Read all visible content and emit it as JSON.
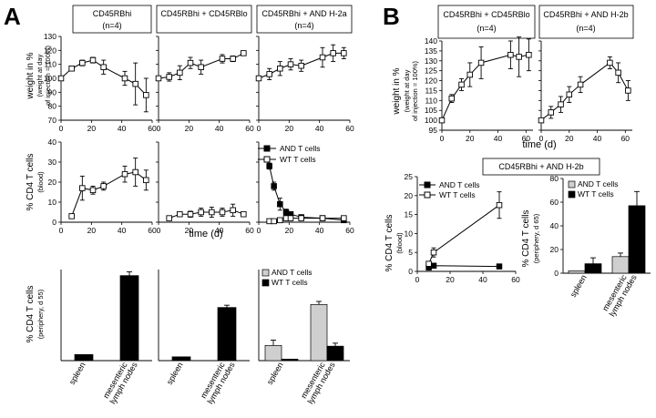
{
  "panel_labels": {
    "a": "A",
    "b": "B"
  },
  "box_titles": {
    "a1": "CD45RBhi",
    "a1_n": "(n=4)",
    "a2": "CD45RBhi + CD45RBlo",
    "a3": "CD45RBhi + AND H-2a",
    "a3_n": "(n=4)",
    "b1": "CD45RBhi + CD45RBlo",
    "b1_n": "(n=4)",
    "b2": "CD45RBhi + AND H-2b",
    "b2_n": "(n=4)",
    "b3": "CD45RBhi + AND H-2b"
  },
  "axis_labels": {
    "weight": "weight in %",
    "weight_sub1": "(weight at day",
    "weight_sub2": "of injection = 100%)",
    "cd4": "% CD4 T cells",
    "blood": "(blood)",
    "periph55": "(periphery, d 55)",
    "periph65": "(periphery, d 65)",
    "time": "time (d)"
  },
  "legend": {
    "and": "AND T cells",
    "wt": "WT T cells"
  },
  "categories": {
    "spleen": "spleen",
    "mes1": "mesenteric",
    "mes2": "lymph nodes"
  },
  "colors": {
    "black": "#000000",
    "white": "#ffffff",
    "grey": "#cfcfcf"
  },
  "chart_data": [
    {
      "id": "A_weight_1",
      "type": "line",
      "title": "CD45RBhi (n=4)",
      "ylabel": "weight in % (weight at day of injection = 100%)",
      "xlim": [
        0,
        60
      ],
      "ylim": [
        70,
        130
      ],
      "xticks": [
        0,
        20,
        40,
        60
      ],
      "yticks": [
        70,
        80,
        90,
        100,
        110,
        120,
        130
      ],
      "series": [
        {
          "name": "weight",
          "marker": "open",
          "x": [
            0,
            7,
            14,
            21,
            28,
            42,
            49,
            56
          ],
          "y": [
            100,
            107,
            111,
            113,
            108,
            100,
            96,
            88
          ],
          "err": [
            1,
            1,
            2,
            2,
            5,
            5,
            15,
            12
          ]
        }
      ]
    },
    {
      "id": "A_weight_2",
      "type": "line",
      "title": "CD45RBhi + CD45RBlo",
      "xlim": [
        0,
        60
      ],
      "ylim": [
        70,
        130
      ],
      "xticks": [
        0,
        20,
        40,
        60
      ],
      "series": [
        {
          "name": "weight",
          "marker": "open",
          "x": [
            0,
            7,
            14,
            21,
            28,
            42,
            49,
            56
          ],
          "y": [
            100,
            101,
            104,
            111,
            108,
            114,
            114,
            118
          ],
          "err": [
            1,
            3,
            5,
            4,
            5,
            3,
            2,
            1
          ]
        }
      ]
    },
    {
      "id": "A_weight_3",
      "type": "line",
      "title": "CD45RBhi + AND H-2a (n=4)",
      "xlim": [
        0,
        60
      ],
      "ylim": [
        70,
        130
      ],
      "xticks": [
        0,
        20,
        40,
        60
      ],
      "series": [
        {
          "name": "weight",
          "marker": "open",
          "x": [
            0,
            7,
            14,
            21,
            28,
            42,
            49,
            56
          ],
          "y": [
            100,
            103,
            107,
            110,
            109,
            115,
            118,
            118
          ],
          "err": [
            1,
            4,
            5,
            4,
            4,
            7,
            6,
            4
          ]
        }
      ]
    },
    {
      "id": "A_cd4_1",
      "type": "line",
      "ylabel": "% CD4 T cells (blood)",
      "xlim": [
        0,
        60
      ],
      "ylim": [
        0,
        40
      ],
      "xticks": [
        0,
        20,
        40,
        60
      ],
      "yticks": [
        0,
        10,
        20,
        30,
        40
      ],
      "series": [
        {
          "name": "WT T cells",
          "marker": "open",
          "x": [
            7,
            14,
            21,
            28,
            42,
            49,
            56
          ],
          "y": [
            3,
            17,
            16,
            18,
            24,
            25,
            21
          ],
          "err": [
            1,
            6,
            2,
            2,
            4,
            7,
            5
          ]
        }
      ]
    },
    {
      "id": "A_cd4_2",
      "type": "line",
      "xlim": [
        0,
        60
      ],
      "ylim": [
        0,
        40
      ],
      "xticks": [
        0,
        20,
        40,
        60
      ],
      "series": [
        {
          "name": "WT T cells",
          "marker": "open",
          "x": [
            7,
            14,
            21,
            28,
            35,
            42,
            49,
            56
          ],
          "y": [
            2,
            4,
            4,
            5,
            5,
            5,
            6,
            4
          ],
          "err": [
            0.5,
            1,
            1.5,
            2,
            2.5,
            2,
            3,
            1
          ]
        }
      ]
    },
    {
      "id": "A_cd4_3",
      "type": "line",
      "xlabel": "time (d)",
      "xlim": [
        0,
        60
      ],
      "ylim": [
        0,
        40
      ],
      "xticks": [
        0,
        20,
        40,
        60
      ],
      "series": [
        {
          "name": "AND T cells",
          "marker": "filled",
          "x": [
            7,
            10,
            14,
            18,
            21,
            28,
            42,
            56
          ],
          "y": [
            28,
            18,
            9,
            5,
            4,
            2.5,
            2,
            1
          ],
          "err": [
            1.5,
            2,
            3,
            1.5,
            1,
            1,
            0.5,
            0.5
          ]
        },
        {
          "name": "WT T cells",
          "marker": "open",
          "x": [
            7,
            10,
            14,
            18,
            21,
            28,
            42,
            56
          ],
          "y": [
            0.5,
            0.5,
            1,
            2,
            2,
            2,
            2,
            2
          ],
          "err": [
            0.3,
            0.3,
            0.5,
            1,
            1,
            1,
            0.8,
            0.5
          ]
        }
      ]
    },
    {
      "id": "A_bar_1",
      "type": "bar",
      "ylabel": "% CD4 T cells (periphery, d 55)",
      "ylim": [
        0,
        60
      ],
      "categories": [
        "spleen",
        "mesenteric lymph nodes"
      ],
      "series": [
        {
          "name": "WT T cells",
          "values": [
            4,
            56
          ],
          "err": [
            0,
            2.5
          ]
        }
      ]
    },
    {
      "id": "A_bar_2",
      "type": "bar",
      "ylim": [
        0,
        60
      ],
      "categories": [
        "spleen",
        "mesenteric lymph nodes"
      ],
      "series": [
        {
          "name": "WT T cells",
          "values": [
            2.5,
            35
          ],
          "err": [
            0,
            1.5
          ]
        }
      ]
    },
    {
      "id": "A_bar_3",
      "type": "bar",
      "ylim": [
        0,
        60
      ],
      "categories": [
        "spleen",
        "mesenteric lymph nodes"
      ],
      "series": [
        {
          "name": "AND T cells",
          "values": [
            10,
            37
          ],
          "err": [
            3.5,
            2
          ]
        },
        {
          "name": "WT T cells",
          "values": [
            1,
            9.5
          ],
          "err": [
            0,
            2
          ]
        }
      ]
    },
    {
      "id": "B_weight_1",
      "type": "line",
      "title": "CD45RBhi + CD45RBlo (n=4)",
      "ylabel": "weight in % (weight at day of injection = 100%)",
      "xlim": [
        0,
        65
      ],
      "ylim": [
        95,
        140
      ],
      "xticks": [
        0,
        20,
        40,
        60
      ],
      "yticks": [
        95,
        100,
        105,
        110,
        115,
        120,
        125,
        130,
        135,
        140
      ],
      "series": [
        {
          "name": "weight",
          "marker": "open",
          "x": [
            0,
            7,
            14,
            20,
            28,
            49,
            55,
            62
          ],
          "y": [
            100,
            111,
            118,
            123,
            129,
            133,
            132,
            133
          ],
          "err": [
            0.5,
            2,
            3,
            6,
            8,
            7,
            10,
            8
          ]
        }
      ]
    },
    {
      "id": "B_weight_2",
      "type": "line",
      "title": "CD45RBhi + AND H-2b (n=4)",
      "xlabel": "time (d)",
      "xlim": [
        0,
        65
      ],
      "ylim": [
        95,
        140
      ],
      "xticks": [
        0,
        20,
        40,
        60
      ],
      "series": [
        {
          "name": "weight",
          "marker": "open",
          "x": [
            0,
            7,
            14,
            20,
            28,
            49,
            55,
            62
          ],
          "y": [
            100,
            104,
            108,
            113,
            118,
            129,
            124,
            115
          ],
          "err": [
            1,
            3,
            4,
            4,
            4,
            3,
            5,
            5
          ]
        }
      ]
    },
    {
      "id": "B_cd4",
      "type": "line",
      "title": "CD45RBhi + AND H-2b",
      "ylabel": "% CD4 T cells (blood)",
      "xlim": [
        0,
        60
      ],
      "ylim": [
        0,
        25
      ],
      "xticks": [
        0,
        20,
        40,
        60
      ],
      "yticks": [
        0,
        5,
        10,
        15,
        20,
        25
      ],
      "series": [
        {
          "name": "AND T cells",
          "marker": "filled",
          "x": [
            7,
            10,
            50
          ],
          "y": [
            1,
            1.5,
            1.3
          ],
          "err": [
            0.3,
            0.3,
            0.2
          ]
        },
        {
          "name": "WT T cells",
          "marker": "open",
          "x": [
            7,
            10,
            50
          ],
          "y": [
            2,
            5,
            17.5
          ],
          "err": [
            0.5,
            1.2,
            3.5
          ]
        }
      ]
    },
    {
      "id": "B_bar",
      "type": "bar",
      "ylabel": "% CD4 T cells (periphery, d 65)",
      "ylim": [
        0,
        80
      ],
      "yticks": [
        0,
        20,
        40,
        60,
        80
      ],
      "categories": [
        "spleen",
        "mesenteric lymph nodes"
      ],
      "series": [
        {
          "name": "AND T cells",
          "values": [
            2,
            14
          ],
          "err": [
            0,
            3
          ]
        },
        {
          "name": "WT T cells",
          "values": [
            8,
            57
          ],
          "err": [
            5,
            12
          ]
        }
      ]
    }
  ]
}
